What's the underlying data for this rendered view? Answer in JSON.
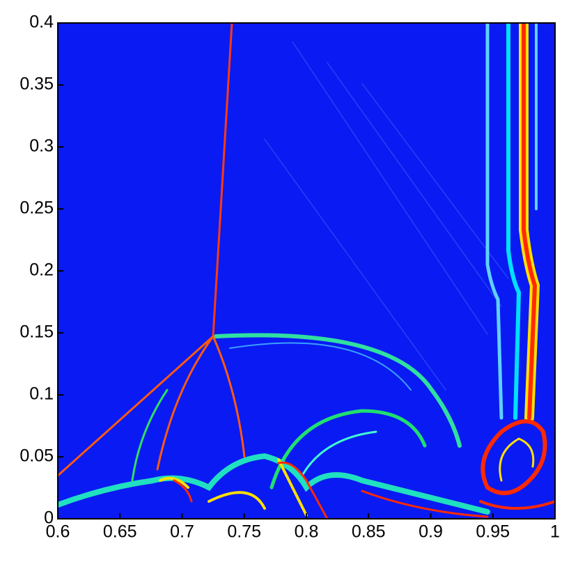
{
  "chart_data": {
    "type": "field",
    "xlim": [
      0.6,
      1
    ],
    "ylim": [
      0,
      0.4
    ],
    "xticks": [
      0.6,
      0.65,
      0.7,
      0.75,
      0.8,
      0.85,
      0.9,
      0.95,
      1
    ],
    "yticks": [
      0,
      0.05,
      0.1,
      0.15,
      0.2,
      0.25,
      0.3,
      0.35,
      0.4
    ],
    "color": "#0a1af2"
  }
}
